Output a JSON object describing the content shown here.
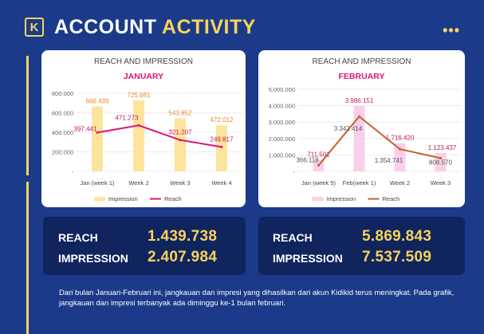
{
  "header": {
    "logo": "K",
    "title_part1": "ACCOUNT",
    "title_part2": "ACTIVITY",
    "menu_icon": "more-dots-icon"
  },
  "colors": {
    "background": "#1b3a8a",
    "accent": "#f7d35b",
    "stat_box": "#10245e"
  },
  "chart_data": [
    {
      "type": "bar",
      "title": "REACH AND IMPRESSION",
      "subtitle": "JANUARY",
      "categories": [
        "Jan (week 1)",
        "Week 2",
        "Week 3",
        "Week 4"
      ],
      "series": [
        {
          "name": "Impression",
          "type": "bar",
          "color": "#fde49c",
          "values": [
            666439,
            725681,
            543852,
            472012
          ],
          "labels": [
            "666.439",
            "725.681",
            "543.852",
            "472.012"
          ]
        },
        {
          "name": "Reach",
          "type": "line",
          "color": "#e0147a",
          "values": [
            397441,
            471273,
            321207,
            249817
          ],
          "labels": [
            "397.441",
            "471.273",
            "321.207",
            "249.817"
          ]
        }
      ],
      "y_ticks": [
        "-",
        "200.000",
        "400.000",
        "600.000",
        "800.000"
      ],
      "ylim": [
        0,
        800000
      ],
      "grid": true,
      "legend": "bottom"
    },
    {
      "type": "bar",
      "title": "REACH AND IMPRESSION",
      "subtitle": "FEBRUARY",
      "categories": [
        "Jan (week 5)",
        "Feb(week 1)",
        "Week 2",
        "Week 3"
      ],
      "series": [
        {
          "name": "Impression",
          "type": "bar",
          "color": "#f9d0ea",
          "values": [
            711501,
            3986151,
            1716420,
            1123437
          ],
          "labels": [
            "711.501",
            "3.986.151",
            "1.716.420",
            "1.123.437"
          ]
        },
        {
          "name": "Reach",
          "type": "line",
          "color": "#c0632a",
          "values": [
            366118,
            3342414,
            1354741,
            806570
          ],
          "labels": [
            "366.118",
            "3.342.414",
            "1.354.741",
            "806.570"
          ]
        }
      ],
      "y_ticks": [
        "-",
        "1.000.000",
        "2.000.000",
        "3.000.000",
        "4.000.000",
        "5.000.000"
      ],
      "ylim": [
        0,
        5000000
      ],
      "grid": true,
      "legend": "bottom"
    }
  ],
  "stats": {
    "january": {
      "reach_label": "REACH",
      "reach_value": "1.439.738",
      "impression_label": "IMPRESSION",
      "impression_value": "2.407.984"
    },
    "february": {
      "reach_label": "REACH",
      "reach_value": "5.869.843",
      "impression_label": "IMPRESSION",
      "impression_value": "7.537.509"
    }
  },
  "footer_text": "Dari bulan Januari-Februari ini, jangkauan dan impresi yang dihasilkan dari akun Kidikid terus meningkat. Pada grafik, jangkauan dan impresi terbanyak ada diminggu ke-1 bulan februari."
}
